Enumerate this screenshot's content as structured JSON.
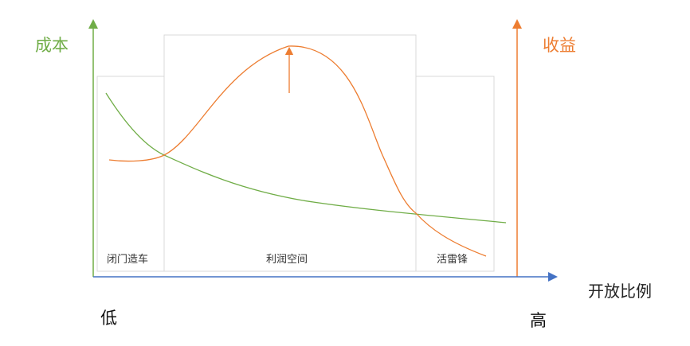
{
  "colors": {
    "cost": "#70ad47",
    "revenue": "#ed7d31",
    "x_axis": "#4472c4",
    "zone_border": "#d9d9d9"
  },
  "axes": {
    "cost_label": "成本",
    "revenue_label": "收益",
    "x_label": "开放比例",
    "x_low": "低",
    "x_high": "高"
  },
  "zones": [
    {
      "label": "闭门造车"
    },
    {
      "label": "利润空间"
    },
    {
      "label": "活雷锋"
    }
  ]
}
